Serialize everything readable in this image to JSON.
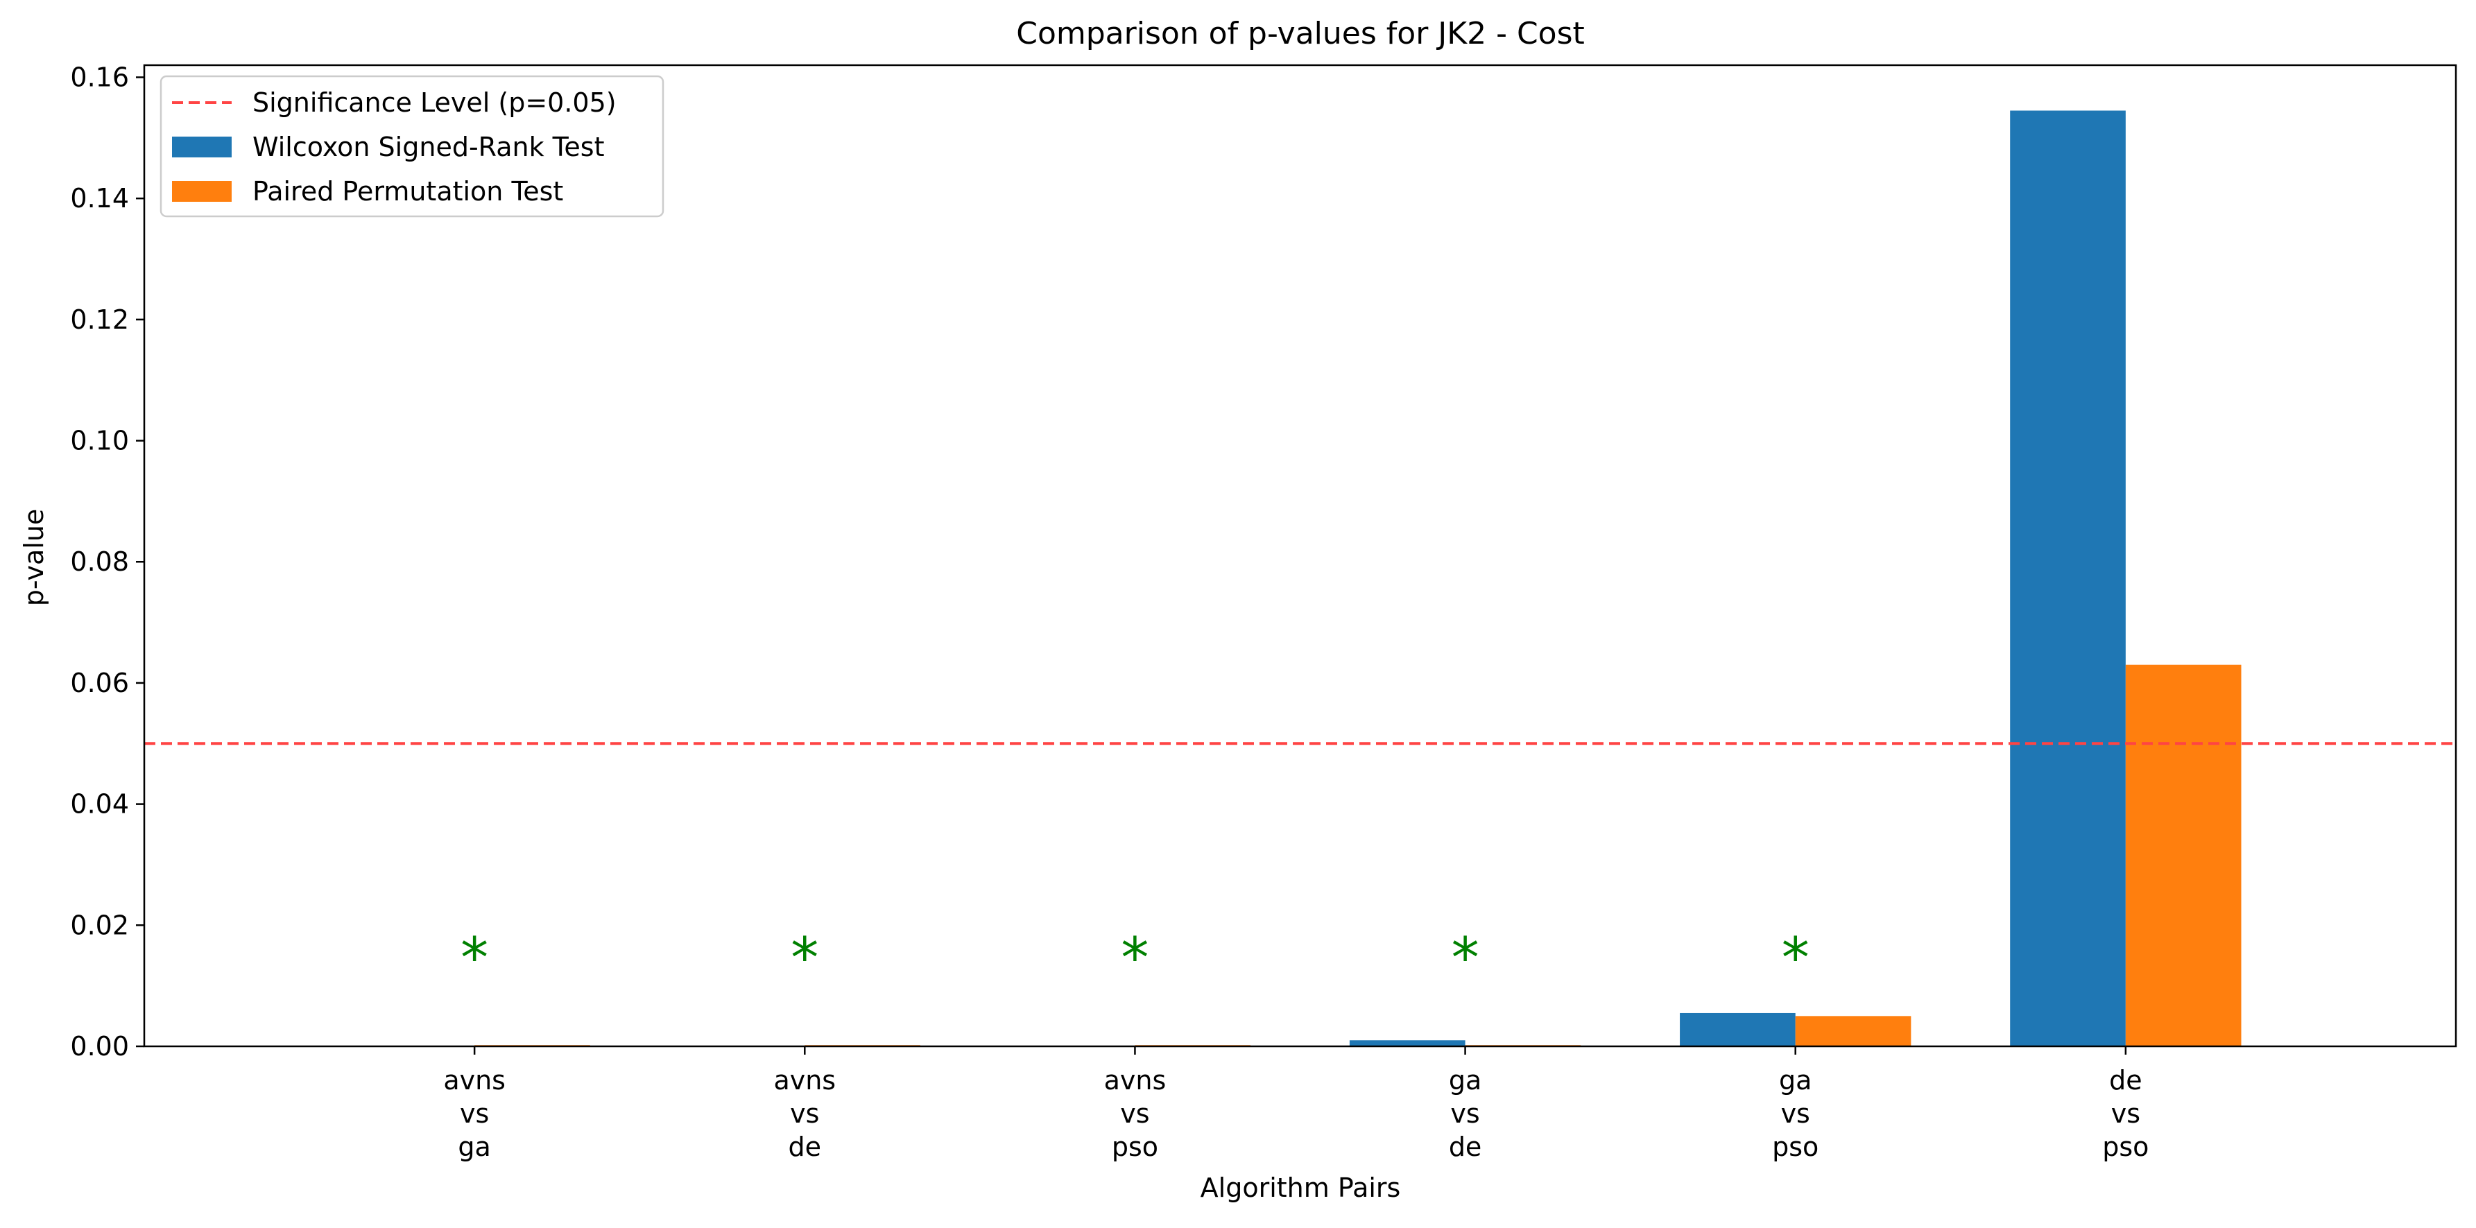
{
  "chart_data": {
    "type": "bar",
    "title": "Comparison of p-values for JK2 - Cost",
    "xlabel": "Algorithm Pairs",
    "ylabel": "p-value",
    "ylim": [
      0,
      0.162
    ],
    "yticks": [
      0.0,
      0.02,
      0.04,
      0.06,
      0.08,
      0.1,
      0.12,
      0.14,
      0.16
    ],
    "ytick_labels": [
      "0.00",
      "0.02",
      "0.04",
      "0.06",
      "0.08",
      "0.10",
      "0.12",
      "0.14",
      "0.16"
    ],
    "categories": [
      [
        "avns",
        "vs",
        "ga"
      ],
      [
        "avns",
        "vs",
        "de"
      ],
      [
        "avns",
        "vs",
        "pso"
      ],
      [
        "ga",
        "vs",
        "de"
      ],
      [
        "ga",
        "vs",
        "pso"
      ],
      [
        "de",
        "vs",
        "pso"
      ]
    ],
    "series": [
      {
        "name": "Wilcoxon Signed-Rank Test",
        "color": "#1f77b4",
        "values": [
          0.0,
          0.0,
          0.0,
          0.001,
          0.0055,
          0.1545
        ]
      },
      {
        "name": "Paired Permutation Test",
        "color": "#ff7f0e",
        "values": [
          0.0002,
          0.0002,
          0.0002,
          0.0002,
          0.005,
          0.063
        ]
      }
    ],
    "reference_line": {
      "label": "Significance Level (p=0.05)",
      "value": 0.05,
      "color": "#ff4444",
      "style": "dashed"
    },
    "significance_marker": {
      "symbol": "*",
      "color": "#008000",
      "value": 0.016,
      "show": [
        true,
        true,
        true,
        true,
        true,
        false
      ]
    },
    "legend": {
      "placement": "top-left"
    },
    "grid": false
  }
}
